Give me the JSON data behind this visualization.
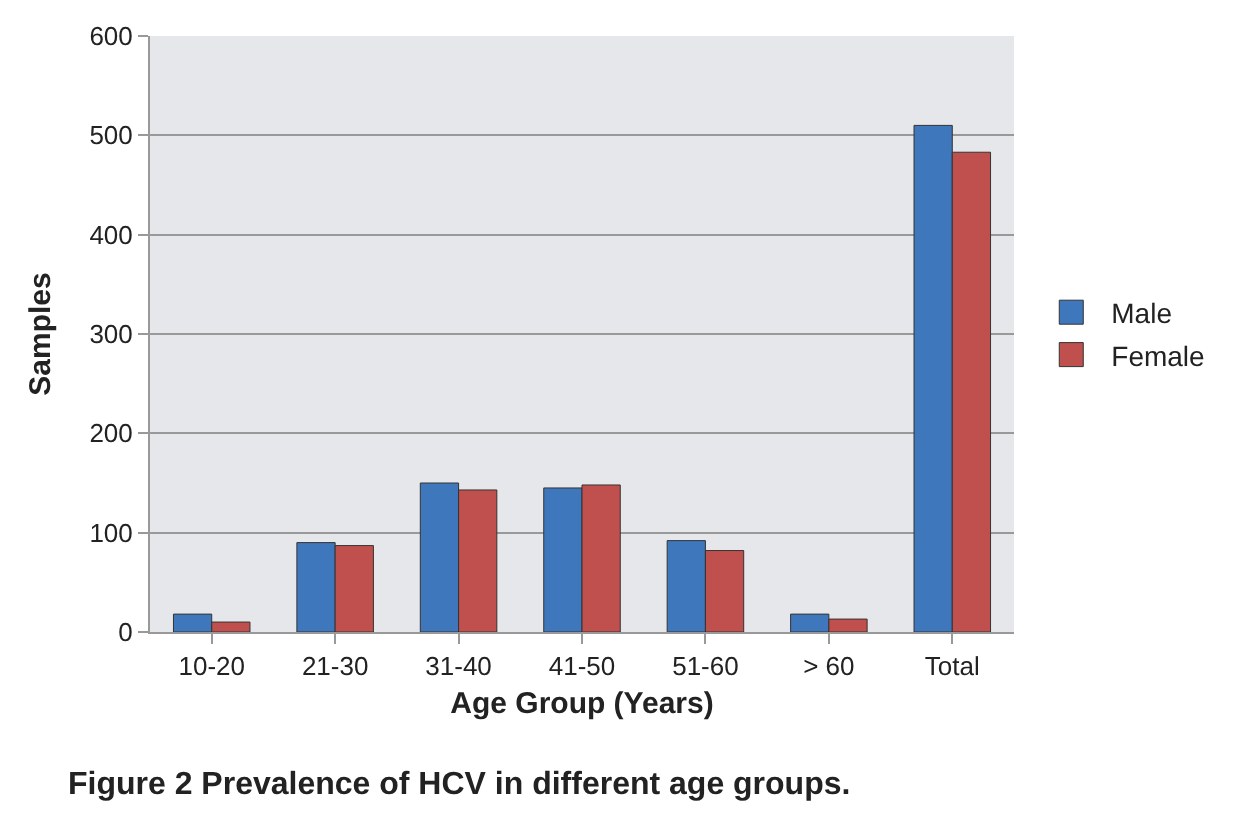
{
  "chart_data": {
    "type": "bar",
    "title": "Figure 2 Prevalence of HCV in different age groups.",
    "xlabel": "Age Group (Years)",
    "ylabel": "Samples",
    "categories": [
      "10-20",
      "21-30",
      "31-40",
      "41-50",
      "51-60",
      "> 60",
      "Total"
    ],
    "series": [
      {
        "name": "Male",
        "color": "#3f77bc",
        "values": [
          18,
          90,
          150,
          145,
          92,
          18,
          510
        ]
      },
      {
        "name": "Female",
        "color": "#c0504d",
        "values": [
          10,
          87,
          143,
          148,
          82,
          13,
          483
        ]
      }
    ],
    "ylim": [
      0,
      600
    ],
    "yticks": [
      0,
      100,
      200,
      300,
      400,
      500,
      600
    ],
    "grid": "y",
    "legend": "right"
  }
}
